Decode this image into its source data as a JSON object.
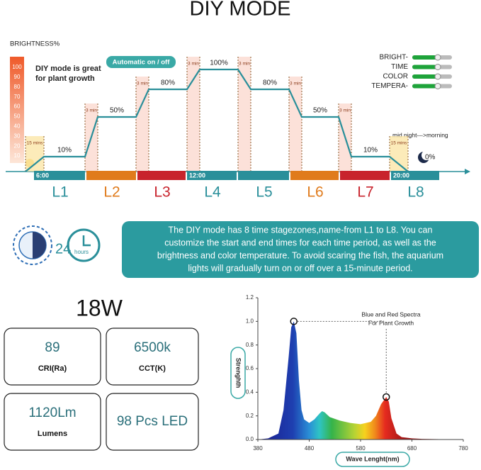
{
  "title": "DIY MODE",
  "schedule": {
    "axis_title": "BRIGHTNESS%",
    "brightness_scale": [
      100,
      90,
      80,
      70,
      60,
      50,
      40,
      30,
      20,
      10
    ],
    "note": [
      "DIY mode is great",
      "for plant growth"
    ],
    "auto_label": "Automatic on / off",
    "legend": [
      "BRIGHT-",
      "TIME",
      "COLOR",
      "TEMPERA-"
    ],
    "levels": [
      "10%",
      "50%",
      "80%",
      "100%",
      "80%",
      "50%",
      "10%"
    ],
    "ramps": [
      "15 mins",
      "3 min",
      "3 min",
      "3 min",
      "3 min",
      "3 min",
      "3 min",
      "15 mins"
    ],
    "times": [
      "6:00",
      "12:00",
      "20:00"
    ],
    "zones": [
      "L1",
      "L2",
      "L3",
      "L4",
      "L5",
      "L6",
      "L7",
      "L8"
    ],
    "night": "mid night--->morning",
    "night_level": "0%"
  },
  "banner": {
    "icon_text": [
      "24",
      "hours"
    ],
    "text": [
      "The DIY mode has 8 time stagezones,name-from L1 to L8. You can",
      "customize the start and end times for each time period, as well as the",
      "brightness and color temperature. To avoid scaring the fish, the aquarium",
      "lights will gradually turn on or off over a 15-minute period."
    ]
  },
  "power": "18W",
  "specs": [
    {
      "value": "89",
      "label": "CRI(Ra)"
    },
    {
      "value": "6500k",
      "label": "CCT(K)"
    },
    {
      "value": "1120Lm",
      "label": "Lumens"
    },
    {
      "value": "98 Pcs LED"
    }
  ],
  "spectrum": {
    "x": [
      380,
      400,
      420,
      430,
      440,
      445,
      450,
      455,
      460,
      465,
      470,
      480,
      490,
      500,
      505,
      510,
      520,
      540,
      560,
      580,
      600,
      610,
      620,
      630,
      635,
      640,
      650,
      660,
      680,
      700,
      780
    ],
    "values": [
      0,
      0.01,
      0.05,
      0.25,
      0.7,
      0.95,
      1.0,
      0.9,
      0.5,
      0.25,
      0.17,
      0.14,
      0.17,
      0.22,
      0.24,
      0.23,
      0.19,
      0.16,
      0.14,
      0.13,
      0.15,
      0.2,
      0.3,
      0.36,
      0.32,
      0.18,
      0.05,
      0.02,
      0.01,
      0.005,
      0
    ],
    "xlim": [
      380,
      780
    ],
    "ylim": [
      0,
      1.2
    ],
    "xticks": [
      380,
      480,
      580,
      680,
      780
    ],
    "yticks": [
      {
        "value": 0,
        "label": "0.0"
      },
      0.2,
      0.4,
      0.6,
      0.8,
      {
        "value": 1,
        "label": "1.0"
      },
      1.2
    ],
    "annotation": [
      "Blue and Red Spectra",
      "For Plant Growth"
    ],
    "ylabel": "Strenghth",
    "xlabel": "Wave Lenght(nm)"
  }
}
